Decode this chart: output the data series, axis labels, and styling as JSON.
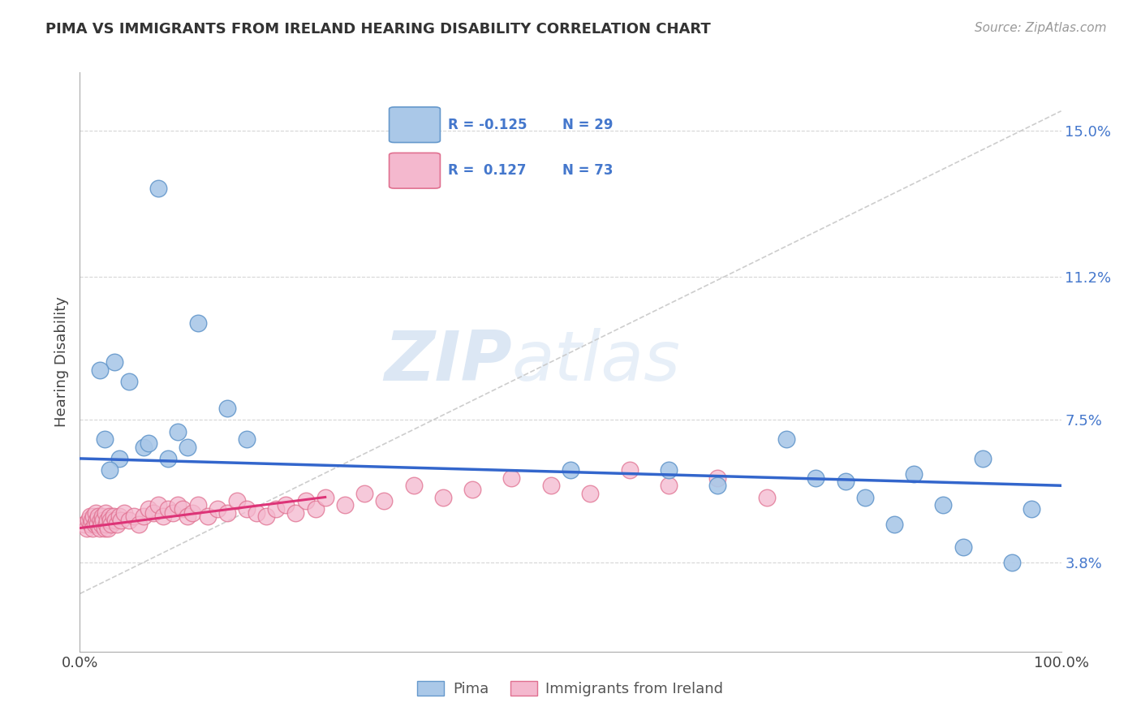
{
  "title": "PIMA VS IMMIGRANTS FROM IRELAND HEARING DISABILITY CORRELATION CHART",
  "source_text": "Source: ZipAtlas.com",
  "ylabel": "Hearing Disability",
  "watermark_zip": "ZIP",
  "watermark_atlas": "atlas",
  "xlim": [
    0.0,
    100.0
  ],
  "ylim": [
    1.5,
    16.5
  ],
  "yticks": [
    3.8,
    7.5,
    11.2,
    15.0
  ],
  "grid_color": "#cccccc",
  "pima_color": "#aac8e8",
  "pima_edge_color": "#6699cc",
  "ireland_color": "#f4b8ce",
  "ireland_edge_color": "#e07090",
  "pima_R": -0.125,
  "pima_N": 29,
  "ireland_R": 0.127,
  "ireland_N": 73,
  "pima_line_color": "#3366cc",
  "ireland_line_color": "#dd3377",
  "legend_pima_label": "Pima",
  "legend_ireland_label": "Immigrants from Ireland",
  "pima_x": [
    8.0,
    5.0,
    3.5,
    12.0,
    10.0,
    2.0,
    15.0,
    6.5,
    4.0,
    2.5,
    3.0,
    7.0,
    9.0,
    11.0,
    17.0,
    50.0,
    65.0,
    75.0,
    80.0,
    85.0,
    88.0,
    92.0,
    95.0,
    97.0,
    72.0,
    60.0,
    83.0,
    90.0,
    78.0
  ],
  "pima_y": [
    13.5,
    8.5,
    9.0,
    10.0,
    7.2,
    8.8,
    7.8,
    6.8,
    6.5,
    7.0,
    6.2,
    6.9,
    6.5,
    6.8,
    7.0,
    6.2,
    5.8,
    6.0,
    5.5,
    6.1,
    5.3,
    6.5,
    3.8,
    5.2,
    7.0,
    6.2,
    4.8,
    4.2,
    5.9
  ],
  "ireland_x": [
    0.5,
    0.7,
    0.9,
    1.0,
    1.1,
    1.2,
    1.3,
    1.4,
    1.5,
    1.6,
    1.7,
    1.8,
    1.9,
    2.0,
    2.1,
    2.2,
    2.3,
    2.4,
    2.5,
    2.6,
    2.7,
    2.8,
    2.9,
    3.0,
    3.1,
    3.2,
    3.4,
    3.6,
    3.8,
    4.0,
    4.2,
    4.5,
    5.0,
    5.5,
    6.0,
    6.5,
    7.0,
    7.5,
    8.0,
    8.5,
    9.0,
    9.5,
    10.0,
    10.5,
    11.0,
    11.5,
    12.0,
    13.0,
    14.0,
    15.0,
    16.0,
    17.0,
    18.0,
    19.0,
    20.0,
    21.0,
    22.0,
    23.0,
    24.0,
    25.0,
    27.0,
    29.0,
    31.0,
    34.0,
    37.0,
    40.0,
    44.0,
    48.0,
    52.0,
    56.0,
    60.0,
    65.0,
    70.0
  ],
  "ireland_y": [
    4.8,
    4.7,
    4.9,
    5.0,
    4.8,
    4.9,
    4.7,
    5.0,
    4.8,
    5.1,
    4.9,
    4.8,
    5.0,
    4.7,
    4.9,
    4.8,
    5.0,
    4.9,
    4.7,
    5.1,
    4.8,
    4.9,
    4.7,
    5.0,
    4.9,
    4.8,
    5.0,
    4.9,
    4.8,
    5.0,
    4.9,
    5.1,
    4.9,
    5.0,
    4.8,
    5.0,
    5.2,
    5.1,
    5.3,
    5.0,
    5.2,
    5.1,
    5.3,
    5.2,
    5.0,
    5.1,
    5.3,
    5.0,
    5.2,
    5.1,
    5.4,
    5.2,
    5.1,
    5.0,
    5.2,
    5.3,
    5.1,
    5.4,
    5.2,
    5.5,
    5.3,
    5.6,
    5.4,
    5.8,
    5.5,
    5.7,
    6.0,
    5.8,
    5.6,
    6.2,
    5.8,
    6.0,
    5.5
  ]
}
